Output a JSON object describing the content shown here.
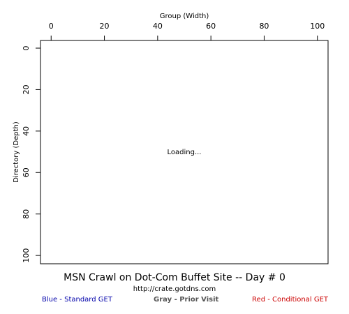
{
  "chart_data": {
    "type": "scatter",
    "title": "MSN Crawl on Dot-Com Buffet Site -- Day # 0",
    "subtitle": "http://crate.gotdns.com",
    "xlabel": "Group (Width)",
    "ylabel": "Directory (Depth)",
    "xlim": [
      -4,
      104
    ],
    "ylim": [
      0,
      104
    ],
    "y_reversed": true,
    "xticks": [
      0,
      20,
      40,
      60,
      80,
      100
    ],
    "yticks": [
      0,
      20,
      40,
      60,
      80,
      100
    ],
    "x_axis_position": "top",
    "status_text": "Loading...",
    "points": [],
    "legend": [
      {
        "label": "Blue - Standard GET",
        "color": "#0000aa"
      },
      {
        "label": "Gray - Prior Visit",
        "color": "#555555"
      },
      {
        "label": "Red - Conditional GET",
        "color": "#cc0000"
      }
    ]
  }
}
